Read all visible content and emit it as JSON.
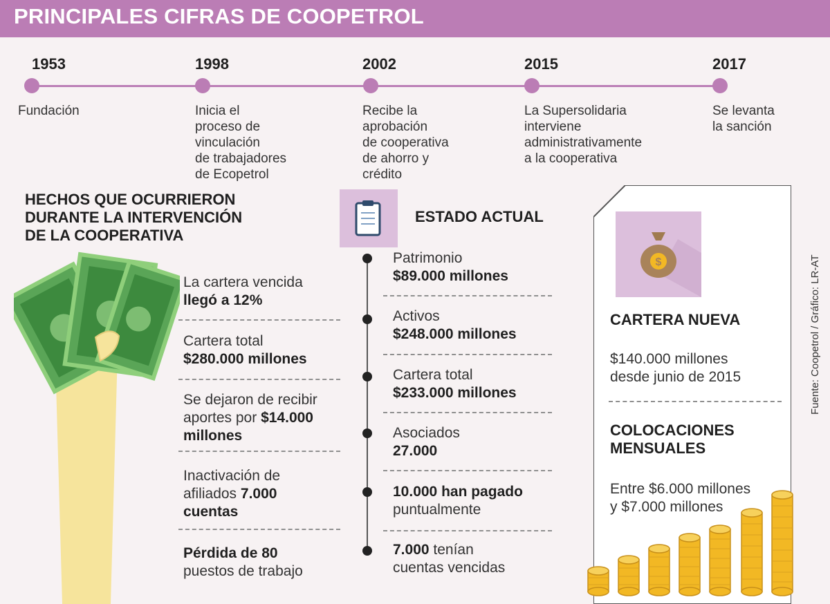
{
  "header": {
    "title": "PRINCIPALES CIFRAS DE COOPETROL"
  },
  "timeline": [
    {
      "year": "1953",
      "lines": [
        "Fundación"
      ]
    },
    {
      "year": "1998",
      "lines": [
        "Inicia el",
        "proceso de",
        "vinculación",
        "de trabajadores",
        "de Ecopetrol"
      ]
    },
    {
      "year": "2002",
      "lines": [
        "Recibe la",
        "aprobación",
        "de cooperativa",
        "de ahorro y",
        "crédito"
      ]
    },
    {
      "year": "2015",
      "lines": [
        "La Supersolidaria",
        "interviene",
        "administrativamente",
        "a la cooperativa"
      ]
    },
    {
      "year": "2017",
      "lines": [
        "Se levanta",
        "la sanción"
      ]
    }
  ],
  "facts": {
    "title_lines": [
      "HECHOS QUE OCURRIERON",
      "DURANTE LA INTERVENCIÓN",
      "DE LA COOPERATIVA"
    ],
    "items": [
      {
        "l1": "La cartera vencida",
        "l2a": "llegó a 12%",
        "l2b": "",
        "l3": ""
      },
      {
        "l1": "Cartera total",
        "l2a": "$280.000 millones",
        "l2b": "",
        "l3": ""
      },
      {
        "l1": "Se dejaron de recibir",
        "l2a": "aportes por ",
        "l2b": "$14.000",
        "l3": "millones"
      },
      {
        "l1": "Inactivación de",
        "l2a": "afiliados ",
        "l2b": "7.000",
        "l3": "cuentas"
      },
      {
        "l1": "Pérdida de 80",
        "l2a": "puestos de trabajo",
        "l2b": "",
        "l3": ""
      }
    ]
  },
  "status": {
    "title": "ESTADO ACTUAL",
    "items": [
      {
        "label": "Patrimonio",
        "value": "$89.000 millones"
      },
      {
        "label": "Activos",
        "value": "$248.000 millones"
      },
      {
        "label": "Cartera total",
        "value": "$233.000 millones"
      },
      {
        "label": "Asociados",
        "value": "27.000"
      },
      {
        "label": "10.000 han pagado",
        "value": "puntualmente"
      },
      {
        "label": "7.000",
        "label_rest": " tenían",
        "value": "cuentas vencidas"
      }
    ]
  },
  "new_portfolio": {
    "title": "CARTERA NUEVA",
    "amount": "$140.000 millones",
    "since": "desde junio de 2015"
  },
  "monthly": {
    "title_lines": [
      "COLOCACIONES",
      "MENSUALES"
    ],
    "line1": "Entre $6.000 millones",
    "line2": "y $7.000 millones"
  },
  "source": "Fuente: Coopetrol / Gráfico: LR-AT",
  "colors": {
    "accent": "#bb7db5",
    "icon_bg": "#dcbfdc",
    "money": "#3c8a3e",
    "coin": "#f2b824"
  }
}
